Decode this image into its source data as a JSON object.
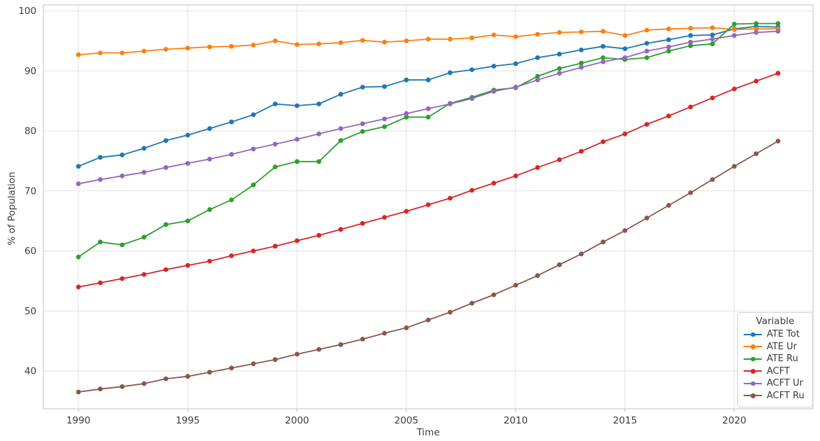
{
  "figure": {
    "xlabel": "Time",
    "ylabel": "% of Population",
    "legend_title": "Variable",
    "background_color": "#ffffff",
    "grid_color": "#e2e2e2",
    "spine_color": "#cccccc",
    "tick_color": "#bbbbbb",
    "text_color": "#3b3b3b"
  },
  "chart_data": {
    "type": "line",
    "title": "",
    "xlabel": "Time",
    "ylabel": "% of Population",
    "grid": true,
    "legend_title": "Variable",
    "legend_position": "lower right",
    "xlim": [
      1988.4,
      2023.6
    ],
    "ylim": [
      33.7,
      101.0
    ],
    "x_ticks": [
      1990,
      1995,
      2000,
      2005,
      2010,
      2015,
      2020
    ],
    "y_ticks": [
      40,
      50,
      60,
      70,
      80,
      90,
      100
    ],
    "x": [
      1990,
      1991,
      1992,
      1993,
      1994,
      1995,
      1996,
      1997,
      1998,
      1999,
      2000,
      2001,
      2002,
      2003,
      2004,
      2005,
      2006,
      2007,
      2008,
      2009,
      2010,
      2011,
      2012,
      2013,
      2014,
      2015,
      2016,
      2017,
      2018,
      2019,
      2020,
      2021,
      2022
    ],
    "series": [
      {
        "name": "ATE Tot",
        "color": "#1f77b4",
        "values": [
          74.1,
          75.6,
          76.0,
          77.1,
          78.4,
          79.3,
          80.4,
          81.5,
          82.7,
          84.5,
          84.2,
          84.5,
          86.1,
          87.3,
          87.4,
          88.5,
          88.5,
          89.7,
          90.2,
          90.8,
          91.2,
          92.2,
          92.8,
          93.5,
          94.1,
          93.7,
          94.6,
          95.2,
          95.9,
          96.0,
          97.0,
          97.4,
          97.3
        ]
      },
      {
        "name": "ATE Ur",
        "color": "#ff7f0e",
        "values": [
          92.7,
          93.0,
          93.0,
          93.3,
          93.6,
          93.8,
          94.0,
          94.1,
          94.3,
          95.0,
          94.4,
          94.5,
          94.7,
          95.1,
          94.8,
          95.0,
          95.3,
          95.3,
          95.5,
          96.0,
          95.7,
          96.1,
          96.4,
          96.5,
          96.6,
          95.9,
          96.8,
          97.0,
          97.1,
          97.2,
          96.9,
          97.0,
          97.0
        ]
      },
      {
        "name": "ATE Ru",
        "color": "#2ca02c",
        "values": [
          59.0,
          61.5,
          61.0,
          62.3,
          64.4,
          65.0,
          66.9,
          68.5,
          71.0,
          74.0,
          74.9,
          74.9,
          78.4,
          79.9,
          80.7,
          82.3,
          82.3,
          84.6,
          85.6,
          86.8,
          87.2,
          89.1,
          90.4,
          91.3,
          92.2,
          91.9,
          92.2,
          93.3,
          94.2,
          94.5,
          97.8,
          97.9,
          97.9
        ]
      },
      {
        "name": "ACFT",
        "color": "#d62728",
        "values": [
          54.0,
          54.7,
          55.4,
          56.1,
          56.9,
          57.6,
          58.3,
          59.2,
          60.0,
          60.8,
          61.7,
          62.6,
          63.6,
          64.6,
          65.6,
          66.6,
          67.7,
          68.8,
          70.1,
          71.3,
          72.5,
          73.9,
          75.2,
          76.6,
          78.2,
          79.5,
          81.1,
          82.5,
          84.0,
          85.5,
          87.0,
          88.3,
          89.6
        ]
      },
      {
        "name": "ACFT Ur",
        "color": "#9467bd",
        "values": [
          71.2,
          71.9,
          72.5,
          73.1,
          73.9,
          74.6,
          75.3,
          76.1,
          77.0,
          77.8,
          78.6,
          79.5,
          80.4,
          81.2,
          82.0,
          82.9,
          83.7,
          84.5,
          85.4,
          86.6,
          87.3,
          88.5,
          89.6,
          90.6,
          91.5,
          92.2,
          93.3,
          94.0,
          94.8,
          95.3,
          95.9,
          96.4,
          96.6
        ]
      },
      {
        "name": "ACFT Ru",
        "color": "#8c564b",
        "values": [
          36.5,
          37.0,
          37.4,
          37.9,
          38.7,
          39.1,
          39.8,
          40.5,
          41.2,
          41.9,
          42.8,
          43.6,
          44.4,
          45.3,
          46.3,
          47.2,
          48.5,
          49.8,
          51.3,
          52.7,
          54.3,
          55.9,
          57.7,
          59.5,
          61.5,
          63.4,
          65.5,
          67.6,
          69.7,
          71.9,
          74.1,
          76.2,
          78.3
        ]
      }
    ]
  }
}
